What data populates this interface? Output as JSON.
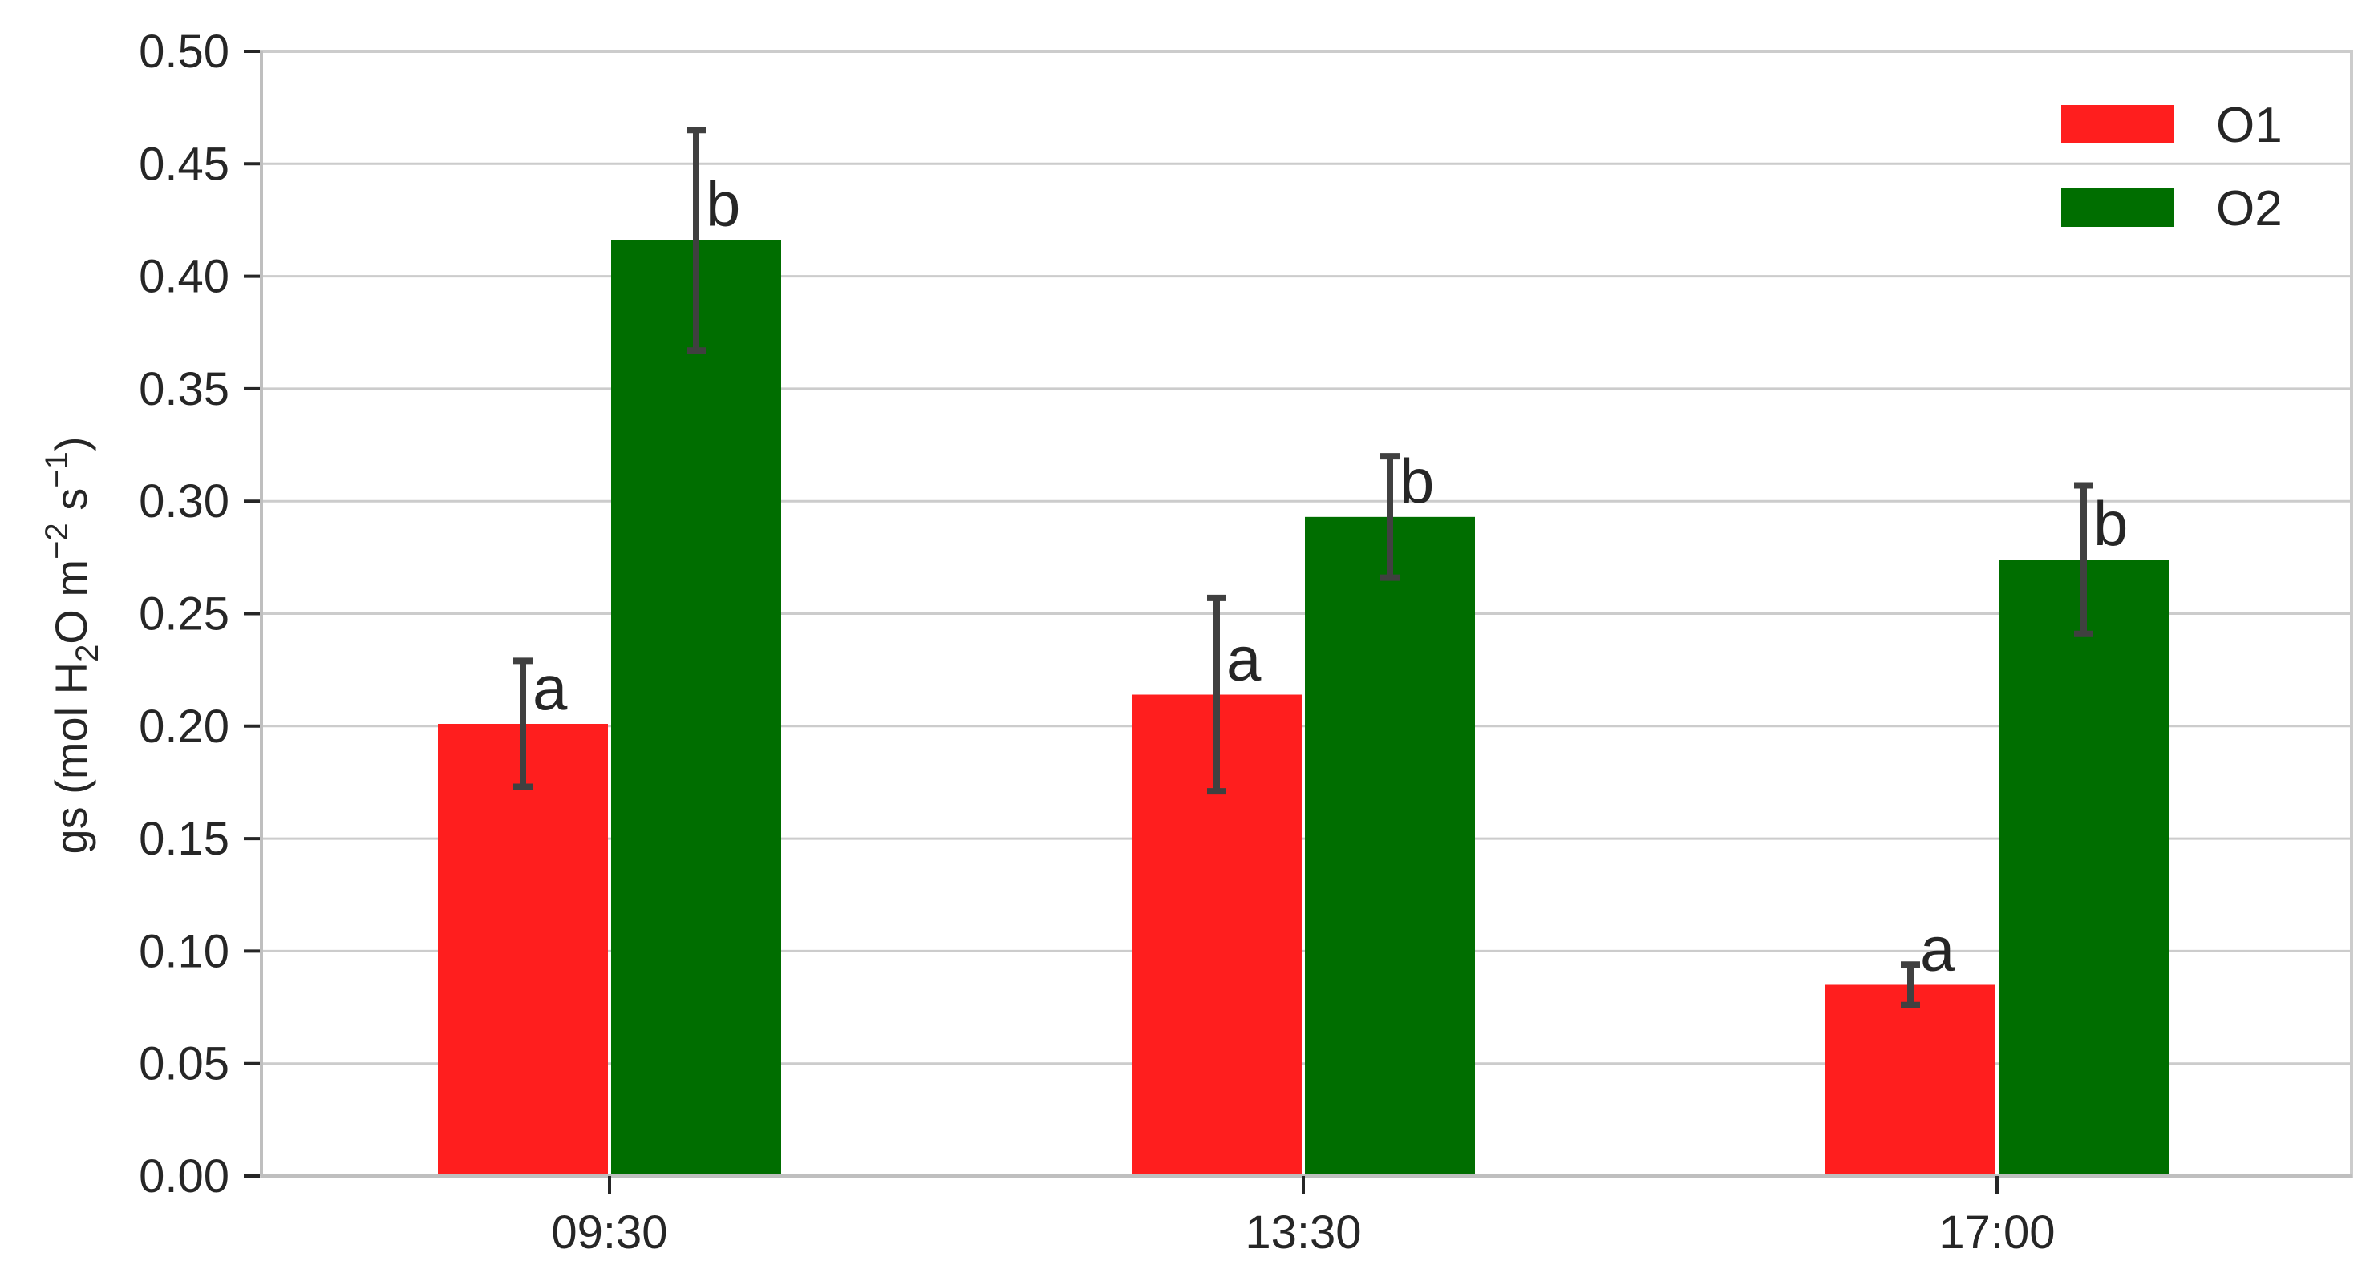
{
  "chart_data": {
    "type": "bar",
    "categories": [
      "09:30",
      "13:30",
      "17:00"
    ],
    "series": [
      {
        "name": "O1",
        "color": "#ff1e1e",
        "values": [
          0.201,
          0.214,
          0.085
        ],
        "error": [
          0.028,
          0.043,
          0.009
        ],
        "letters": [
          "a",
          "a",
          "a"
        ]
      },
      {
        "name": "O2",
        "color": "#006e00",
        "values": [
          0.416,
          0.293,
          0.274
        ],
        "error": [
          0.049,
          0.027,
          0.033
        ],
        "letters": [
          "b",
          "b",
          "b"
        ]
      }
    ],
    "ylabel": {
      "prefix": "gs (mol H",
      "sub": "2",
      "mid": "O m",
      "sup1": "−2",
      "mid2": " s",
      "sup2": "−1",
      "suffix": ")"
    },
    "xlabel": "",
    "ylim": [
      0,
      0.5
    ],
    "yticks": [
      "0.00",
      "0.05",
      "0.10",
      "0.15",
      "0.20",
      "0.25",
      "0.30",
      "0.35",
      "0.40",
      "0.45",
      "0.50"
    ],
    "grid": "horizontal",
    "legend_position": "top-right",
    "colors": {
      "grid": "#cccccc",
      "axis": "#cccccc",
      "error_bar": "#404040"
    }
  }
}
